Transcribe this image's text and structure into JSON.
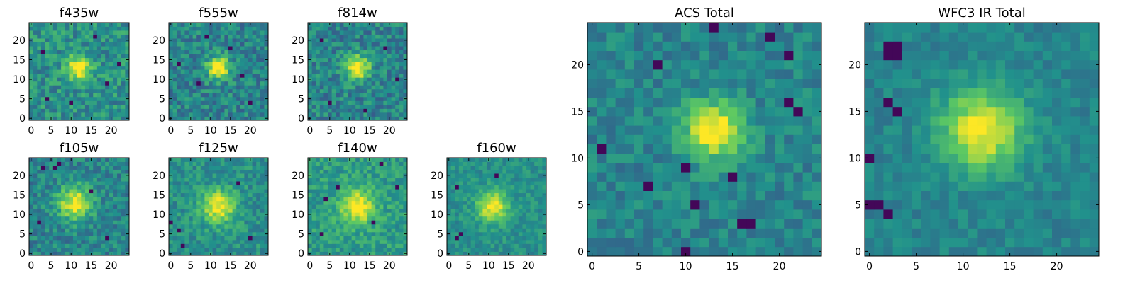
{
  "chart_data": [
    {
      "type": "heatmap",
      "title": "f435w",
      "grid": false,
      "xlim": [
        -0.5,
        24.5
      ],
      "ylim": [
        -0.5,
        24.5
      ],
      "xticks": [
        0,
        5,
        10,
        15,
        20
      ],
      "yticks": [
        0,
        5,
        10,
        15,
        20
      ],
      "source": {
        "cx": 12,
        "cy": 13,
        "sigma": 2.2,
        "amp": 0.55
      },
      "background": 0.5,
      "noise": 0.32,
      "dark_pixels": [
        [
          3,
          17
        ],
        [
          10,
          4
        ],
        [
          19,
          9
        ],
        [
          4,
          5
        ],
        [
          16,
          21
        ],
        [
          22,
          14
        ]
      ],
      "seed": 11
    },
    {
      "type": "heatmap",
      "title": "f555w",
      "grid": false,
      "xlim": [
        -0.5,
        24.5
      ],
      "ylim": [
        -0.5,
        24.5
      ],
      "xticks": [
        0,
        5,
        10,
        15,
        20
      ],
      "yticks": [
        0,
        5,
        10,
        15,
        20
      ],
      "source": {
        "cx": 12,
        "cy": 13,
        "sigma": 2.0,
        "amp": 0.65
      },
      "background": 0.45,
      "noise": 0.32,
      "dark_pixels": [
        [
          7,
          9
        ],
        [
          15,
          18
        ],
        [
          20,
          4
        ],
        [
          2,
          14
        ],
        [
          18,
          11
        ],
        [
          9,
          21
        ]
      ],
      "seed": 23
    },
    {
      "type": "heatmap",
      "title": "f814w",
      "grid": false,
      "xlim": [
        -0.5,
        24.5
      ],
      "ylim": [
        -0.5,
        24.5
      ],
      "xticks": [
        0,
        5,
        10,
        15,
        20
      ],
      "yticks": [
        0,
        5,
        10,
        15,
        20
      ],
      "source": {
        "cx": 12,
        "cy": 13,
        "sigma": 2.2,
        "amp": 0.6
      },
      "background": 0.45,
      "noise": 0.32,
      "dark_pixels": [
        [
          3,
          20
        ],
        [
          19,
          18
        ],
        [
          5,
          4
        ],
        [
          22,
          10
        ],
        [
          14,
          2
        ]
      ],
      "seed": 37
    },
    {
      "type": "heatmap",
      "title": "f105w",
      "grid": false,
      "xlim": [
        -0.5,
        24.5
      ],
      "ylim": [
        -0.5,
        24.5
      ],
      "xticks": [
        0,
        5,
        10,
        15,
        20
      ],
      "yticks": [
        0,
        5,
        10,
        15,
        20
      ],
      "source": {
        "cx": 11,
        "cy": 13,
        "sigma": 3.0,
        "amp": 0.55
      },
      "background": 0.45,
      "noise": 0.28,
      "dark_pixels": [
        [
          6,
          22
        ],
        [
          7,
          23
        ],
        [
          3,
          22
        ],
        [
          19,
          4
        ],
        [
          15,
          16
        ],
        [
          2,
          8
        ]
      ],
      "seed": 41
    },
    {
      "type": "heatmap",
      "title": "f125w",
      "grid": false,
      "xlim": [
        -0.5,
        24.5
      ],
      "ylim": [
        -0.5,
        24.5
      ],
      "xticks": [
        0,
        5,
        10,
        15,
        20
      ],
      "yticks": [
        0,
        5,
        10,
        15,
        20
      ],
      "source": {
        "cx": 12,
        "cy": 12,
        "sigma": 3.0,
        "amp": 0.5
      },
      "background": 0.5,
      "noise": 0.25,
      "dark_pixels": [
        [
          0,
          8
        ],
        [
          2,
          6
        ],
        [
          3,
          2
        ],
        [
          20,
          4
        ],
        [
          17,
          18
        ]
      ],
      "seed": 53
    },
    {
      "type": "heatmap",
      "title": "f140w",
      "grid": false,
      "xlim": [
        -0.5,
        24.5
      ],
      "ylim": [
        -0.5,
        24.5
      ],
      "xticks": [
        0,
        5,
        10,
        15,
        20
      ],
      "yticks": [
        0,
        5,
        10,
        15,
        20
      ],
      "source": {
        "cx": 12,
        "cy": 12,
        "sigma": 3.0,
        "amp": 0.5
      },
      "background": 0.55,
      "noise": 0.25,
      "dark_pixels": [
        [
          18,
          23
        ],
        [
          4,
          14
        ],
        [
          7,
          17
        ],
        [
          3,
          5
        ],
        [
          16,
          8
        ],
        [
          22,
          17
        ]
      ],
      "seed": 67
    },
    {
      "type": "heatmap",
      "title": "f160w",
      "grid": false,
      "xlim": [
        -0.5,
        24.5
      ],
      "ylim": [
        -0.5,
        24.5
      ],
      "xticks": [
        0,
        5,
        10,
        15,
        20
      ],
      "yticks": [
        0,
        5,
        10,
        15,
        20
      ],
      "source": {
        "cx": 11,
        "cy": 12,
        "sigma": 2.8,
        "amp": 0.5
      },
      "background": 0.5,
      "noise": 0.2,
      "dark_pixels": [
        [
          2,
          4
        ],
        [
          3,
          5
        ],
        [
          2,
          17
        ],
        [
          12,
          20
        ]
      ],
      "seed": 79
    },
    {
      "type": "heatmap",
      "title": "ACS Total",
      "grid": false,
      "xlim": [
        -0.5,
        24.5
      ],
      "ylim": [
        -0.5,
        24.5
      ],
      "xticks": [
        0,
        5,
        10,
        15,
        20
      ],
      "yticks": [
        0,
        5,
        10,
        15,
        20
      ],
      "source": {
        "cx": 13,
        "cy": 13,
        "sigma": 2.2,
        "amp": 0.6
      },
      "background": 0.45,
      "noise": 0.22,
      "dark_pixels": [
        [
          13,
          24
        ],
        [
          19,
          23
        ],
        [
          21,
          21
        ],
        [
          7,
          20
        ],
        [
          21,
          16
        ],
        [
          22,
          15
        ],
        [
          10,
          9
        ],
        [
          15,
          8
        ],
        [
          6,
          7
        ],
        [
          11,
          5
        ],
        [
          16,
          3
        ],
        [
          17,
          3
        ],
        [
          10,
          0
        ],
        [
          1,
          11
        ]
      ],
      "seed": 97
    },
    {
      "type": "heatmap",
      "title": "WFC3 IR Total",
      "grid": false,
      "xlim": [
        -0.5,
        24.5
      ],
      "ylim": [
        -0.5,
        24.5
      ],
      "xticks": [
        0,
        5,
        10,
        15,
        20
      ],
      "yticks": [
        0,
        5,
        10,
        15,
        20
      ],
      "source": {
        "cx": 12,
        "cy": 13,
        "sigma": 3.0,
        "amp": 0.55
      },
      "background": 0.45,
      "noise": 0.16,
      "dark_pixels": [
        [
          2,
          21
        ],
        [
          3,
          21
        ],
        [
          2,
          22
        ],
        [
          3,
          22
        ],
        [
          0,
          5
        ],
        [
          1,
          5
        ],
        [
          2,
          4
        ],
        [
          2,
          16
        ],
        [
          3,
          15
        ],
        [
          0,
          10
        ]
      ],
      "seed": 113
    }
  ],
  "colors": {
    "low": "#440154",
    "mid1": "#3b528b",
    "mid2": "#21918c",
    "mid3": "#5ec962",
    "high": "#fde725"
  }
}
